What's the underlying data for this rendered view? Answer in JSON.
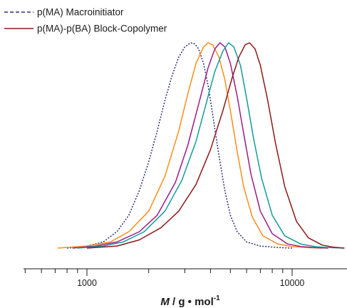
{
  "chart_data": {
    "type": "line",
    "title": "",
    "xlabel": {
      "italic": "M",
      "rest": " / g • mol",
      "superscript": "-1"
    },
    "ylabel": "",
    "x_scale": "log",
    "xlim": [
      480,
      18000
    ],
    "ylim": [
      0,
      1.05
    ],
    "x_ticks": [
      1000,
      10000
    ],
    "x_tick_labels": [
      "1000",
      "10000"
    ],
    "grid": false,
    "legend_position": "top-left",
    "legend": [
      {
        "label": "p(MA) Macroinitiator",
        "color": "#2e2e7a",
        "style": "dashed"
      },
      {
        "label": "p(MA)-p(BA) Block-Copolymer",
        "color": "#8b1a1a",
        "style": "solid"
      }
    ],
    "series": [
      {
        "color": "#2e2e7a",
        "style": "dashed",
        "x": [
          800,
          900,
          1000,
          1200,
          1400,
          1600,
          1800,
          2000,
          2200,
          2400,
          2600,
          2800,
          3000,
          3200,
          3350,
          3500,
          3700,
          3900,
          4100,
          4400,
          4700,
          5000,
          5400,
          6000,
          7000,
          8500,
          10000
        ],
        "y": [
          0.0,
          0.003,
          0.01,
          0.03,
          0.08,
          0.16,
          0.28,
          0.42,
          0.57,
          0.72,
          0.84,
          0.93,
          0.98,
          1.0,
          0.995,
          0.97,
          0.9,
          0.79,
          0.65,
          0.45,
          0.28,
          0.16,
          0.08,
          0.03,
          0.01,
          0.003,
          0.0
        ]
      },
      {
        "color": "#ff8c1a",
        "style": "solid",
        "x": [
          720,
          1000,
          1300,
          1600,
          2000,
          2400,
          2800,
          3100,
          3400,
          3700,
          3900,
          4100,
          4400,
          4700,
          5000,
          5400,
          5800,
          6400,
          7200,
          8500,
          10000,
          12000,
          14000
        ],
        "y": [
          0.0,
          0.01,
          0.03,
          0.08,
          0.18,
          0.35,
          0.57,
          0.75,
          0.9,
          0.98,
          1.0,
          0.99,
          0.93,
          0.82,
          0.67,
          0.47,
          0.3,
          0.15,
          0.06,
          0.02,
          0.008,
          0.002,
          0.0
        ]
      },
      {
        "color": "#9b1b8a",
        "style": "solid",
        "x": [
          850,
          1100,
          1400,
          1800,
          2200,
          2700,
          3100,
          3500,
          3900,
          4200,
          4450,
          4700,
          5000,
          5400,
          5800,
          6300,
          7000,
          8000,
          9500,
          11000,
          13000,
          15000
        ],
        "y": [
          0.0,
          0.01,
          0.03,
          0.08,
          0.16,
          0.32,
          0.5,
          0.7,
          0.88,
          0.97,
          1.0,
          0.98,
          0.9,
          0.74,
          0.56,
          0.36,
          0.18,
          0.07,
          0.02,
          0.008,
          0.002,
          0.0
        ]
      },
      {
        "color": "#159a9a",
        "style": "solid",
        "x": [
          900,
          1200,
          1500,
          1900,
          2400,
          2900,
          3400,
          3800,
          4200,
          4600,
          4900,
          5200,
          5600,
          6000,
          6500,
          7100,
          8000,
          9200,
          11000,
          13000,
          15500,
          18000
        ],
        "y": [
          0.0,
          0.01,
          0.03,
          0.08,
          0.18,
          0.33,
          0.52,
          0.7,
          0.86,
          0.96,
          1.0,
          0.98,
          0.89,
          0.73,
          0.53,
          0.34,
          0.16,
          0.06,
          0.02,
          0.007,
          0.002,
          0.0
        ]
      },
      {
        "color": "#8b1a1a",
        "style": "solid",
        "x": [
          1000,
          1400,
          1800,
          2300,
          2800,
          3400,
          4000,
          4600,
          5100,
          5500,
          5900,
          6200,
          6600,
          7000,
          7600,
          8300,
          9200,
          10500,
          12000,
          14000,
          16000,
          18000
        ],
        "y": [
          0.0,
          0.01,
          0.04,
          0.1,
          0.18,
          0.31,
          0.48,
          0.67,
          0.83,
          0.93,
          0.99,
          1.0,
          0.97,
          0.89,
          0.72,
          0.51,
          0.3,
          0.13,
          0.05,
          0.015,
          0.004,
          0.0
        ]
      }
    ]
  }
}
